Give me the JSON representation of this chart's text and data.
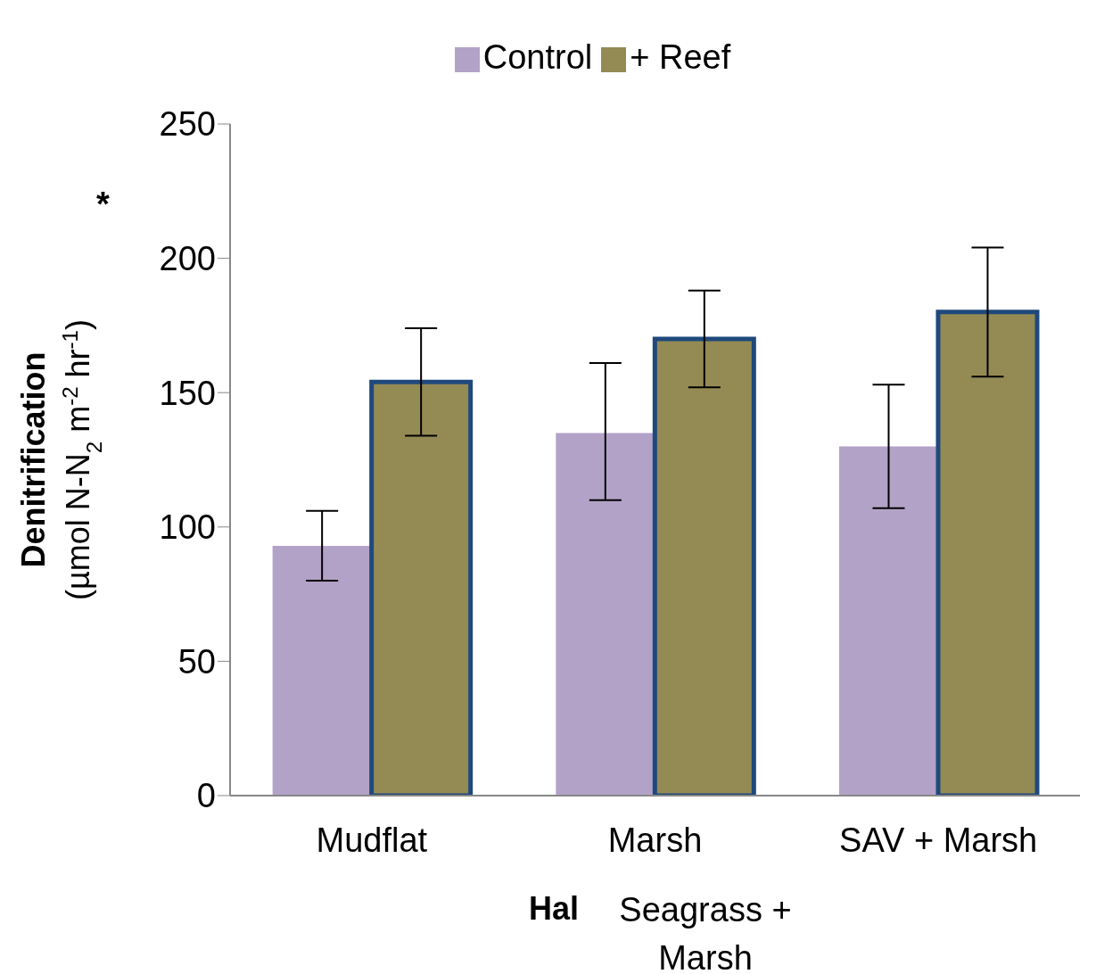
{
  "chart_data": {
    "type": "bar",
    "categories": [
      "Mudflat",
      "Marsh",
      "SAV + Marsh"
    ],
    "series": [
      {
        "name": "Control",
        "color": "#b3a2c7",
        "values": [
          93,
          135,
          130
        ],
        "errors": [
          [
            80,
            106
          ],
          [
            110,
            161
          ],
          [
            107,
            153
          ]
        ]
      },
      {
        "name": "+ Reef",
        "color": "#948a54",
        "values": [
          154,
          170,
          180
        ],
        "errors": [
          [
            134,
            174
          ],
          [
            152,
            188
          ],
          [
            156,
            204
          ]
        ]
      }
    ],
    "ylabel": "Denitrification\n(µmol N-N$_{2}$ m$^{-2}$ hr$^{-1}$)",
    "xlabel": "Hal",
    "annotations": [
      "Seagrass + Marsh",
      "*"
    ],
    "ylim": [
      0,
      250
    ],
    "yticks": [
      0,
      50,
      100,
      150,
      200,
      250
    ],
    "grid": false,
    "legend": "top"
  }
}
